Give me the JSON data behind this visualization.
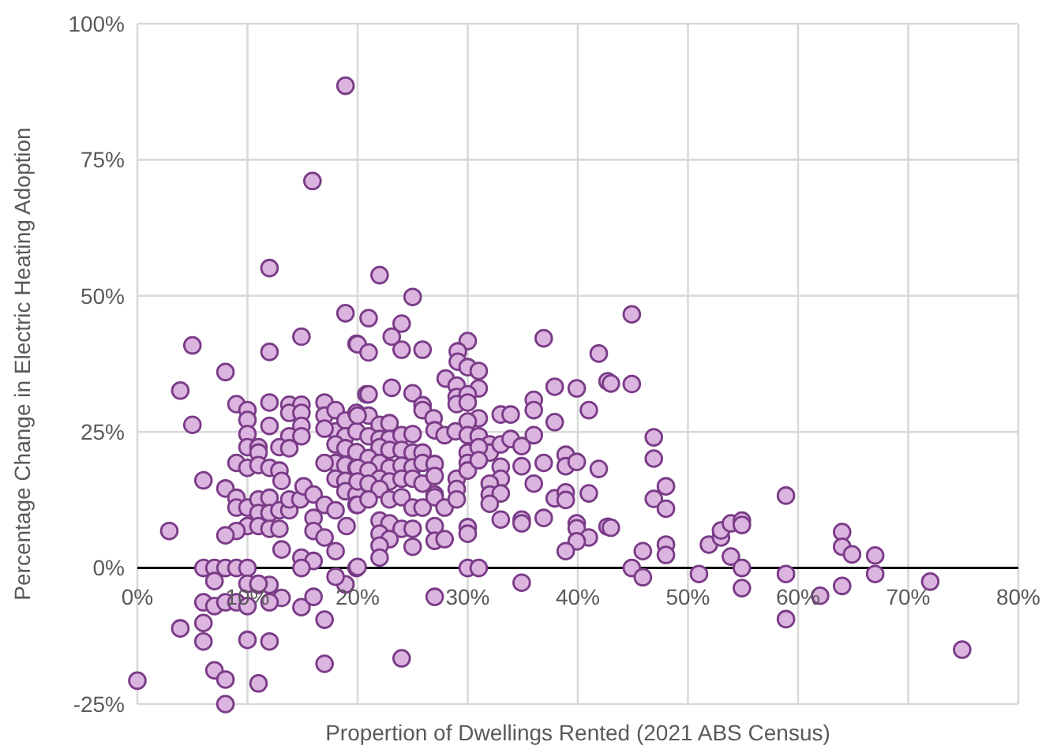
{
  "chart_data": {
    "type": "scatter",
    "xlabel": "Propertion of Dwellings Rented (2021 ABS Census)",
    "ylabel": "Percentage Change in Electric Heating Adoption",
    "xlim": [
      0,
      80
    ],
    "xticks": [
      {
        "value": 0,
        "label": "0%"
      },
      {
        "value": 10,
        "label": "10%"
      },
      {
        "value": 20,
        "label": "20%"
      },
      {
        "value": 30,
        "label": "30%"
      },
      {
        "value": 40,
        "label": "40%"
      },
      {
        "value": 50,
        "label": "50%"
      },
      {
        "value": 60,
        "label": "60%"
      },
      {
        "value": 70,
        "label": "70%"
      },
      {
        "value": 80,
        "label": "80%"
      }
    ],
    "ylim": [
      -25,
      100
    ],
    "yticks": [
      {
        "value": -25,
        "label": "-25%"
      },
      {
        "value": 0,
        "label": "0%"
      },
      {
        "value": 25,
        "label": "25%"
      },
      {
        "value": 50,
        "label": "50%"
      },
      {
        "value": 75,
        "label": "75%"
      },
      {
        "value": 100,
        "label": "100%"
      }
    ],
    "grid": true,
    "marker": "circle",
    "series": [
      {
        "color": "#dcb4e0",
        "x": [
          12,
          18.9,
          5,
          12,
          14.9,
          19.9,
          8,
          3.9,
          5,
          9,
          10,
          10,
          10,
          10,
          12,
          12,
          13.8,
          14.9,
          13.8,
          14.9,
          14.9,
          13.8,
          14.9,
          12.9,
          13.8,
          11,
          11,
          9,
          10,
          11,
          12,
          12.9,
          13.1,
          6,
          8,
          9,
          9,
          10,
          11,
          12,
          11,
          12,
          12.9,
          13.8,
          13.8,
          14.8,
          15.1,
          16,
          17,
          18,
          10,
          11,
          12,
          12.9,
          9,
          8,
          2.9,
          16,
          16,
          17,
          18,
          19,
          13.1,
          14.9,
          16,
          14.9,
          6,
          7,
          8,
          9,
          10,
          7,
          10,
          11,
          12,
          13.1,
          12,
          11,
          6,
          7,
          8,
          9,
          10,
          3.9,
          6,
          6,
          10,
          12,
          17,
          14.9,
          16,
          7,
          8,
          11,
          17,
          0,
          8,
          19.9,
          18.9,
          18,
          17,
          17,
          18,
          18,
          18.9,
          18.9,
          19.9,
          19.9,
          18,
          18.9,
          19.9,
          18,
          18.9,
          19.9,
          18,
          18.9,
          null,
          18.9,
          19.9,
          19.9,
          17,
          17,
          20.8,
          18.9,
          15.9,
          22,
          25,
          21,
          24,
          23.1,
          20,
          21,
          24,
          25.9,
          30,
          29.1,
          29.1,
          30,
          31,
          31,
          36.9,
          41.9,
          28,
          29,
          29,
          29,
          30,
          30,
          31,
          23.1,
          21,
          25,
          25.9,
          25.9,
          33,
          33.9,
          36,
          36,
          37.9,
          39.9,
          42.7,
          41,
          37.9,
          26.9,
          27,
          27.9,
          28.9,
          30,
          30,
          31,
          32,
          32,
          33,
          33.9,
          34.9,
          36,
          34.9,
          36.9,
          38.9,
          38.9,
          39.9,
          41.9,
          36,
          33,
          33,
          32,
          32,
          33,
          32,
          37.9,
          38.9,
          38.9,
          41,
          33,
          34.9,
          34.9,
          36.9,
          39.9,
          39.9,
          41,
          39.9,
          38.9,
          42.7,
          30,
          31,
          34.9,
          27,
          24,
          21,
          20,
          22,
          22.9,
          21,
          22,
          22.9,
          24,
          25,
          22,
          22.9,
          24,
          25,
          25.9,
          21,
          22,
          22.9,
          24,
          25,
          25.9,
          27,
          20,
          21,
          22,
          22.9,
          24,
          25,
          25.9,
          27,
          27,
          20,
          21,
          22,
          22.9,
          24,
          25,
          25.9,
          27,
          27.9,
          29,
          29,
          29,
          30,
          30,
          30,
          31,
          31,
          22,
          22.9,
          24,
          25,
          22,
          22.9,
          22,
          22,
          25,
          27,
          27,
          27.9,
          30,
          30,
          20,
          20,
          21,
          44.9,
          43,
          44.9,
          46.9,
          46.9,
          48,
          46.9,
          48,
          43,
          48,
          48,
          45.9,
          44.9,
          45.9,
          51,
          51.9,
          53,
          53,
          53.9,
          54.9,
          54.9,
          53.9,
          54.9,
          54.9,
          58.9,
          58.9,
          58.9,
          62,
          64,
          64,
          64.9,
          64,
          67,
          67,
          72,
          74.9
        ],
        "values": [
          55.1,
          46.8,
          40.9,
          39.7,
          42.5,
          41.2,
          36,
          32.6,
          26.3,
          30.1,
          29,
          27.2,
          24.6,
          22.2,
          30.4,
          26.1,
          30,
          30,
          28.5,
          28.5,
          26.1,
          24.2,
          24.2,
          22.2,
          22,
          22.2,
          21.2,
          19.3,
          18.4,
          18.9,
          18.4,
          17.9,
          16,
          16.1,
          14.6,
          12.9,
          11.1,
          11.1,
          12.6,
          12.9,
          10.1,
          10.1,
          10.6,
          10.6,
          12.6,
          12.6,
          15,
          13.5,
          11.6,
          10.6,
          7.7,
          7.7,
          7.2,
          7.2,
          6.8,
          6,
          6.8,
          9.2,
          6.8,
          5.6,
          3.1,
          7.7,
          3.4,
          1.9,
          1.3,
          0,
          0,
          0,
          0,
          0,
          0,
          -2.4,
          -2.9,
          -3.1,
          -3.1,
          -5.5,
          -6.3,
          -2.9,
          -6.3,
          -7,
          -6.3,
          -6.3,
          -7,
          -11.1,
          -10.1,
          -13.5,
          -13.2,
          -13.5,
          -9.5,
          -7.2,
          -5.3,
          -18.8,
          -20.5,
          -21.2,
          -17.6,
          -20.7,
          -25,
          0,
          -3,
          -1.6,
          30.4,
          28,
          29,
          25.1,
          27.1,
          24.2,
          28.5,
          25.1,
          22.7,
          22,
          21.3,
          19.3,
          18.9,
          18.4,
          16.4,
          16,
          null,
          14.1,
          13.5,
          11.6,
          25.6,
          19.3,
          31.9,
          88.6,
          71.1,
          53.8,
          49.8,
          45.9,
          44.9,
          42.5,
          41.1,
          39.6,
          40.1,
          40.1,
          41.7,
          39.8,
          37.9,
          36.9,
          36.2,
          33,
          42.2,
          39.4,
          34.8,
          33.5,
          31.4,
          30.1,
          31.9,
          30.4,
          27.5,
          33.1,
          31.9,
          32.1,
          29.9,
          29,
          28.2,
          28.2,
          30.9,
          29,
          33.3,
          33,
          34.3,
          29,
          26.8,
          27.5,
          25.3,
          24.4,
          25.1,
          26.9,
          24.4,
          24.2,
          22.7,
          21.2,
          22.7,
          23.7,
          22.4,
          24.4,
          18.7,
          19.3,
          20.8,
          18.7,
          19.5,
          18.2,
          15.5,
          18.6,
          16.4,
          15.5,
          13.5,
          13.7,
          11.8,
          12.8,
          13.9,
          12.5,
          13.7,
          8.9,
          8.9,
          8.2,
          9.2,
          8.2,
          7.3,
          5.6,
          4.9,
          3.1,
          7.6,
          0,
          0,
          -2.7,
          -5.3,
          -16.6,
          28,
          28,
          26.3,
          26.6,
          24.2,
          23.7,
          23.7,
          24.4,
          24.6,
          22.2,
          21.7,
          21.7,
          21.2,
          21.2,
          20.2,
          19.3,
          18.4,
          18.8,
          18.5,
          19.3,
          19.1,
          18.4,
          17.9,
          16.4,
          15.9,
          16.4,
          16.4,
          15.5,
          16.9,
          13.5,
          15.9,
          15.5,
          14.5,
          12.6,
          13,
          11.1,
          11.1,
          13,
          11.1,
          16.4,
          14.5,
          12.6,
          21.2,
          19.3,
          17.9,
          22.2,
          19.8,
          8.7,
          8.2,
          7.2,
          7.2,
          6.3,
          5.3,
          4.1,
          1.9,
          3.9,
          7.7,
          5,
          5.3,
          7.5,
          6.3,
          0.2,
          11.6,
          12.6,
          46.6,
          33.9,
          33.8,
          24,
          20.1,
          15,
          12.7,
          10.9,
          7.4,
          4.3,
          2.4,
          3.1,
          0,
          -1.7,
          -1.1,
          4.3,
          5.6,
          6.9,
          8.2,
          8.7,
          7.9,
          2.1,
          0,
          -3.7,
          13.3,
          -1.1,
          -9.4,
          -5.1,
          6.6,
          3.9,
          2.5,
          -3.3,
          2.3,
          -1.1,
          -2.5,
          -15
        ]
      }
    ]
  }
}
